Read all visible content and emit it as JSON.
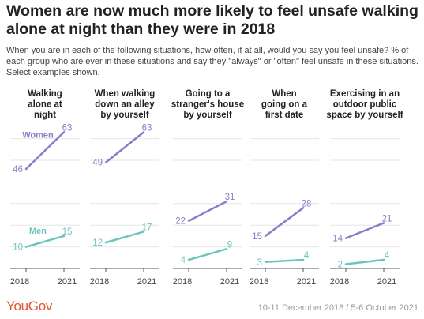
{
  "title": "Women are now much more likely to feel unsafe walking alone at night than they were in 2018",
  "subtitle": "When you are in each of the following situations, how often, if at all, would you say you feel unsafe? % of each group who are ever in these situations and say they \"always\" or \"often\" feel unsafe in these situations. Select examples shown.",
  "footer": {
    "brand": "YouGov",
    "dates": "10-11 December 2018 / 5-6 October 2021"
  },
  "colors": {
    "women": "#8b7dc9",
    "men": "#6cc5bd",
    "grid": "#e6e6e6",
    "axis": "#555555",
    "brand": "#e8512e"
  },
  "chart_data": {
    "type": "line",
    "title": "Women are now much more likely to feel unsafe walking alone at night than they were in 2018",
    "x": [
      "2018",
      "2021"
    ],
    "ylim": [
      0,
      70
    ],
    "grid": true,
    "panels": [
      {
        "title": [
          "Walking",
          "alone at",
          "night"
        ],
        "series": [
          {
            "name": "Women",
            "values": [
              46,
              63
            ]
          },
          {
            "name": "Men",
            "values": [
              10,
              15
            ]
          }
        ]
      },
      {
        "title": [
          "When walking",
          "down an alley",
          "by yourself"
        ],
        "series": [
          {
            "name": "Women",
            "values": [
              49,
              63
            ]
          },
          {
            "name": "Men",
            "values": [
              12,
              17
            ]
          }
        ]
      },
      {
        "title": [
          "Going to a",
          "stranger's house",
          "by yourself"
        ],
        "series": [
          {
            "name": "Women",
            "values": [
              22,
              31
            ]
          },
          {
            "name": "Men",
            "values": [
              4,
              9
            ]
          }
        ]
      },
      {
        "title": [
          "When",
          "going on a",
          "first date"
        ],
        "series": [
          {
            "name": "Women",
            "values": [
              15,
              28
            ]
          },
          {
            "name": "Men",
            "values": [
              3,
              4
            ]
          }
        ]
      },
      {
        "title": [
          "Exercising in an",
          "outdoor public",
          "space by yourself"
        ],
        "series": [
          {
            "name": "Women",
            "values": [
              14,
              21
            ]
          },
          {
            "name": "Men",
            "values": [
              2,
              4
            ]
          }
        ]
      }
    ]
  }
}
